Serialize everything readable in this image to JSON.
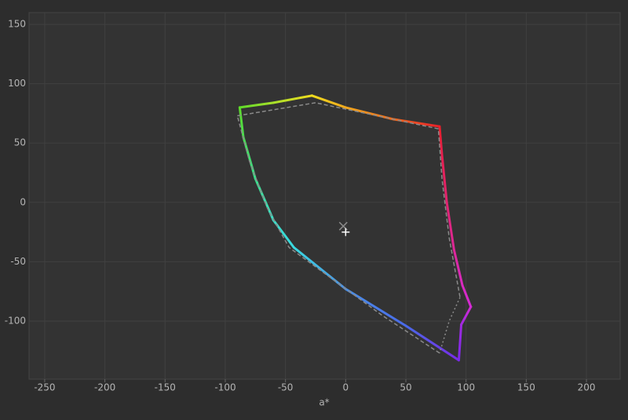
{
  "chart_data": {
    "type": "gamut",
    "x_label": "a*",
    "xlim": [
      -263,
      228
    ],
    "ylim": [
      -149,
      160
    ],
    "xticks": [
      -250,
      -200,
      -150,
      -100,
      -50,
      0,
      50,
      100,
      150,
      200
    ],
    "yticks": [
      -100,
      -50,
      0,
      50,
      100,
      150
    ],
    "grid": true,
    "series": [
      {
        "style": "solid",
        "x": [
          -88,
          -60,
          -28,
          0,
          40,
          78,
          80,
          84,
          90,
          97,
          104,
          96,
          94,
          50,
          0,
          -43,
          -60,
          -75,
          -85,
          -88
        ],
        "y": [
          80,
          84,
          90,
          80,
          70,
          64,
          40,
          0,
          -40,
          -70,
          -88,
          -103,
          -133,
          -104,
          -73,
          -38,
          -15,
          20,
          55,
          80
        ],
        "colors": [
          "#5fdb2a",
          "#a8e02a",
          "#f0dc1e",
          "#f0a81e",
          "#f06a1e",
          "#e8202a",
          "#e82050",
          "#e02470",
          "#dc2898",
          "#d82ac0",
          "#d42ad4",
          "#a02ae0",
          "#7a2ae8",
          "#4a6ae8",
          "#4a90e8",
          "#3ad8e0",
          "#3ae0c8",
          "#3ae08a",
          "#4adc50",
          "#5fdb2a"
        ]
      },
      {
        "style": "dashed",
        "color": "#8a8a8a",
        "x": [
          -90,
          -25,
          77,
          80,
          86,
          95
        ],
        "y": [
          73,
          84,
          62,
          20,
          -30,
          -80
        ]
      },
      {
        "style": "dotted",
        "color": "#8a8a8a",
        "x": [
          95,
          86,
          78
        ],
        "y": [
          -80,
          -100,
          -127
        ]
      },
      {
        "style": "dashed",
        "color": "#8a8a8a",
        "x": [
          78,
          30,
          -47,
          -65,
          -80,
          -90
        ],
        "y": [
          -127,
          -95,
          -38,
          -5,
          35,
          73
        ]
      }
    ],
    "markers": [
      {
        "symbol": "x",
        "color": "#8a8a8a",
        "x": -2,
        "y": -20
      },
      {
        "symbol": "+",
        "color": "#ffffff",
        "x": 0,
        "y": -25
      }
    ]
  }
}
